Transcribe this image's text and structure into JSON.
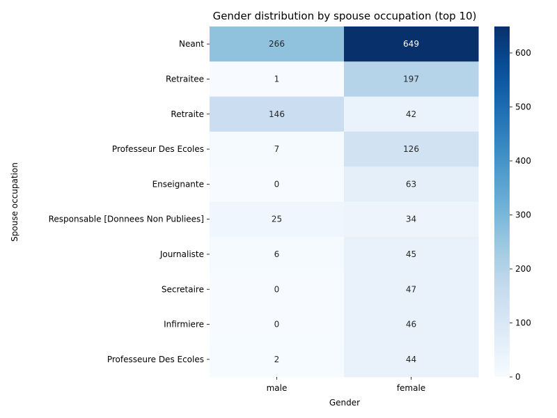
{
  "chart_data": {
    "type": "heatmap",
    "title": "Gender distribution by spouse occupation (top 10)",
    "xlabel": "Gender",
    "ylabel": "Spouse occupation",
    "columns": [
      "male",
      "female"
    ],
    "rows": [
      "Neant",
      "Retraitee",
      "Retraite",
      "Professeur Des Ecoles",
      "Enseignante",
      "Responsable [Donnees Non Publiees]",
      "Journaliste",
      "Secretaire",
      "Infirmiere",
      "Professeure Des Ecoles"
    ],
    "values": [
      [
        266,
        649
      ],
      [
        1,
        197
      ],
      [
        146,
        42
      ],
      [
        7,
        126
      ],
      [
        0,
        63
      ],
      [
        25,
        34
      ],
      [
        6,
        45
      ],
      [
        0,
        47
      ],
      [
        0,
        46
      ],
      [
        2,
        44
      ]
    ],
    "colormap": "Blues",
    "vmin": 0,
    "vmax": 649,
    "colorbar_ticks": [
      0,
      100,
      200,
      300,
      400,
      500,
      600
    ],
    "grid": false
  }
}
